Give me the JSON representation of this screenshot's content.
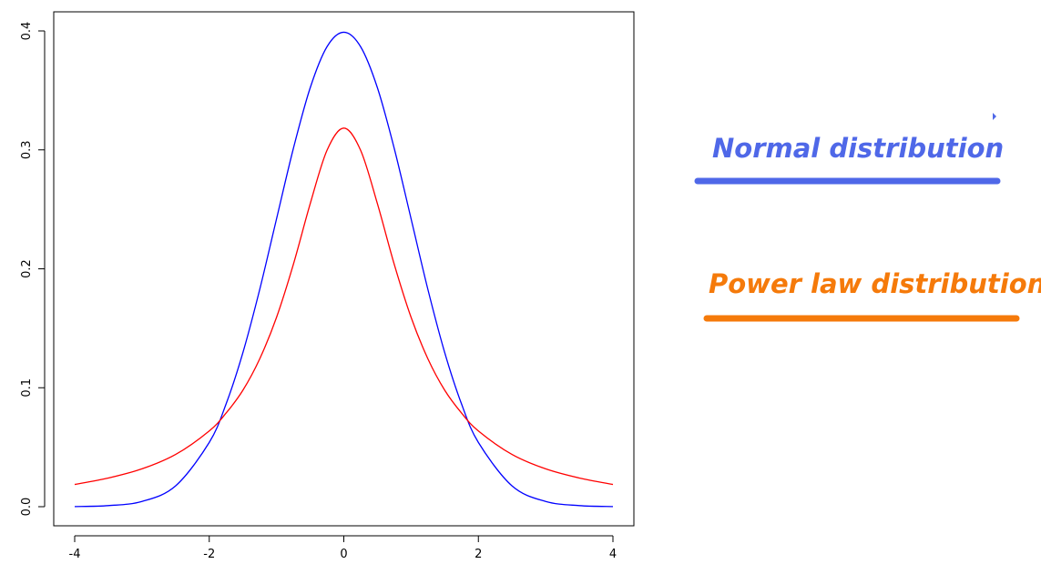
{
  "chart_data": {
    "type": "line",
    "title": "",
    "xlabel": "",
    "ylabel": "",
    "xlim": [
      -4,
      4
    ],
    "ylim": [
      0,
      0.4
    ],
    "x_ticks": [
      -4,
      -2,
      0,
      2,
      4
    ],
    "x_tick_labels": [
      "-4",
      "-2",
      "0",
      "2",
      "4"
    ],
    "y_ticks": [
      0.0,
      0.1,
      0.2,
      0.3,
      0.4
    ],
    "y_tick_labels": [
      "0.0",
      "0.1",
      "0.2",
      "0.3",
      "0.4"
    ],
    "grid": false,
    "legend_position": "right",
    "series": [
      {
        "name": "Normal distribution",
        "color": "#0000ff",
        "legend_color": "#4f68e8",
        "x": [
          -4,
          -3.5,
          -3,
          -2.5,
          -2,
          -1.75,
          -1.5,
          -1.25,
          -1,
          -0.75,
          -0.5,
          -0.25,
          0,
          0.25,
          0.5,
          0.75,
          1,
          1.25,
          1.5,
          1.75,
          2,
          2.5,
          3,
          3.5,
          4
        ],
        "values": [
          0.0001,
          0.0009,
          0.0044,
          0.0175,
          0.054,
          0.0863,
          0.1295,
          0.1826,
          0.242,
          0.3011,
          0.3521,
          0.3867,
          0.3989,
          0.3867,
          0.3521,
          0.3011,
          0.242,
          0.1826,
          0.1295,
          0.0863,
          0.054,
          0.0175,
          0.0044,
          0.0009,
          0.0001
        ]
      },
      {
        "name": "Power law distribution",
        "color": "#ff0000",
        "legend_color": "#f57a0a",
        "x": [
          -4,
          -3.5,
          -3,
          -2.5,
          -2,
          -1.75,
          -1.5,
          -1.25,
          -1,
          -0.75,
          -0.5,
          -0.25,
          0,
          0.25,
          0.5,
          0.75,
          1,
          1.25,
          1.5,
          1.75,
          2,
          2.5,
          3,
          3.5,
          4
        ],
        "values": [
          0.0187,
          0.0241,
          0.0318,
          0.0439,
          0.0637,
          0.0787,
          0.0979,
          0.1243,
          0.1592,
          0.2037,
          0.2546,
          0.2996,
          0.3183,
          0.2996,
          0.2546,
          0.2037,
          0.1592,
          0.1243,
          0.0979,
          0.0787,
          0.0637,
          0.0439,
          0.0318,
          0.0241,
          0.0187
        ]
      }
    ]
  }
}
